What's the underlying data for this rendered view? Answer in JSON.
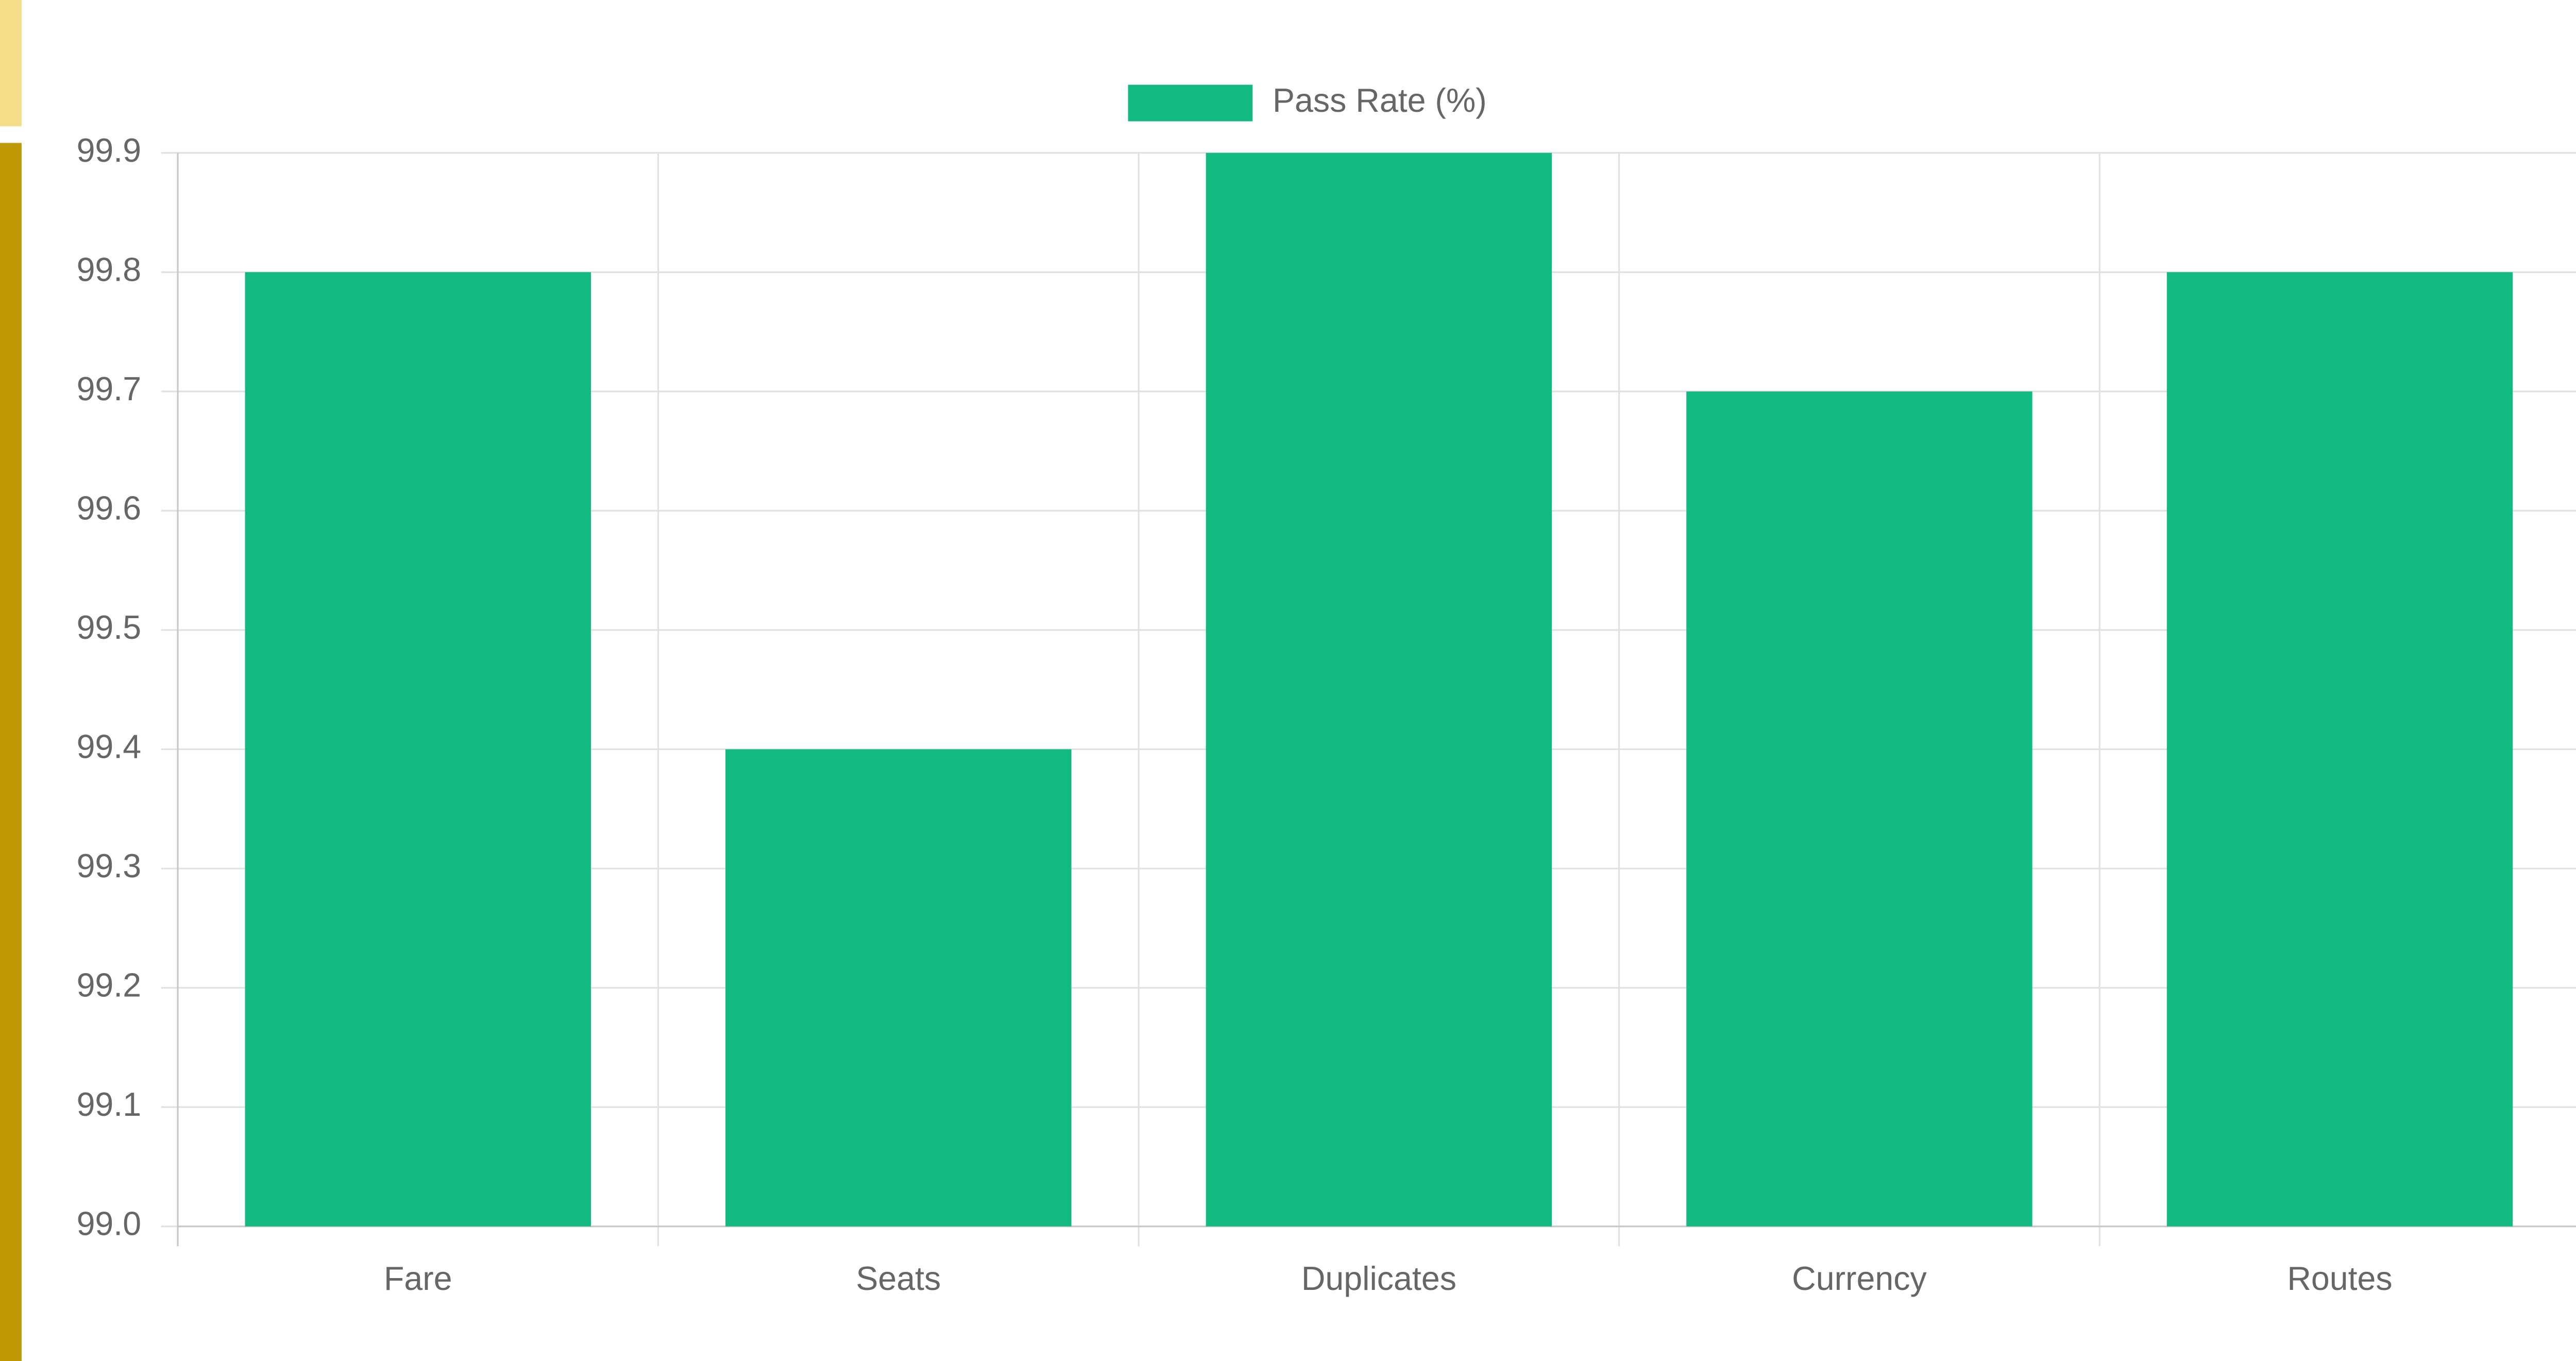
{
  "chart_data": {
    "type": "bar",
    "categories": [
      "Fare",
      "Seats",
      "Duplicates",
      "Currency",
      "Routes"
    ],
    "series": [
      {
        "name": "Pass Rate (%)",
        "color": "#12b981",
        "values": [
          99.8,
          99.4,
          99.9,
          99.7,
          99.8
        ]
      }
    ],
    "ylim": [
      99.0,
      99.9
    ],
    "yticks": [
      {
        "value": 99.0,
        "label": "99.0"
      },
      99.1,
      99.2,
      99.3,
      99.4,
      99.5,
      99.6,
      99.7,
      99.8,
      99.9
    ],
    "grid": true,
    "legend": "top"
  }
}
